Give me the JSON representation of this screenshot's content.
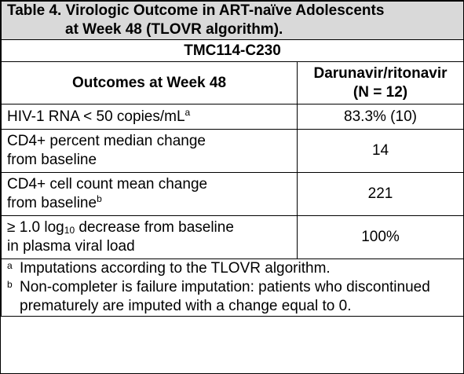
{
  "caption": {
    "line1": "Table 4. Virologic Outcome in ART-naïve Adolescents",
    "line2": "at Week 48 (TLOVR algorithm)."
  },
  "study": "TMC114-C230",
  "headers": {
    "outcomes": "Outcomes at Week 48",
    "treatment_line1": "Darunavir/ritonavir",
    "treatment_line2": "(N = 12)"
  },
  "rows": [
    {
      "label_main": "HIV-1 RNA < 50 copies/mL",
      "label_sup": "a",
      "value": "83.3% (10)"
    },
    {
      "label_line1": "CD4+ percent median change",
      "label_line2": "from baseline",
      "value": "14"
    },
    {
      "label_line1": "CD4+ cell count mean change",
      "label_line2": "from baseline",
      "label_sup": "b",
      "value": "221"
    },
    {
      "label_line1_pre": "≥ 1.0 log",
      "label_line1_sub": "10",
      "label_line1_post": " decrease from baseline",
      "label_line2": "in plasma viral load",
      "value": "100%"
    }
  ],
  "footnotes": [
    {
      "mark": "a",
      "text": "Imputations according to the TLOVR algorithm."
    },
    {
      "mark": "b",
      "text": "Non-completer is failure imputation: patients who discontinued prematurely are imputed with a change equal to 0."
    }
  ]
}
